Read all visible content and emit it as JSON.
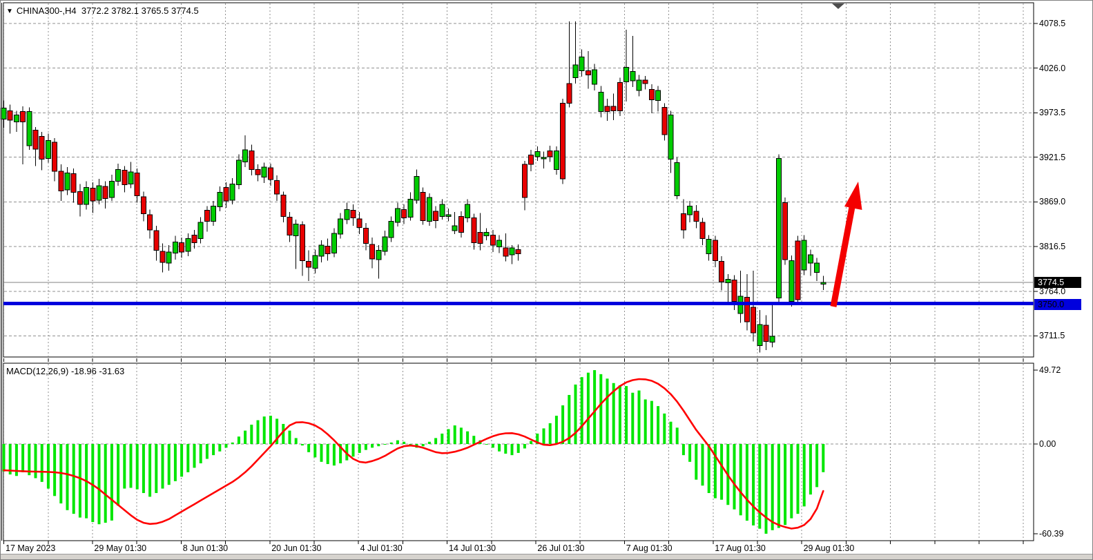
{
  "header": {
    "marker": "▼",
    "symbol_title": "CHINA300-,H4",
    "ohlc_text": "3772.2 3782.1 3765.5 3774.5"
  },
  "price_tags": {
    "current": "3774.5",
    "level": "3750.0"
  },
  "macd_panel": {
    "label": "MACD(12,26,9)",
    "values": "-18.96 -31.63"
  },
  "colors": {
    "bull": "#00cc00",
    "bear": "#e80000",
    "wick": "#000000",
    "histogram": "#00e600",
    "signal": "#ff0000",
    "level_line": "#0000dd",
    "current_line": "#808080",
    "grid": "#8f8f8f",
    "frame": "#000000",
    "arrow": "#f40000",
    "marker": "#4d4d4d"
  },
  "chart_data": {
    "type": "candlestick+macd",
    "symbol": "CHINA300-",
    "timeframe": "H4",
    "current_bar": {
      "open": 3772.2,
      "high": 3782.1,
      "low": 3765.5,
      "close": 3774.5
    },
    "price_axis": {
      "tick_labels": [
        "4078.5",
        "4026.0",
        "3973.5",
        "3921.5",
        "3869.0",
        "3816.5",
        "3764.0",
        "3711.5"
      ],
      "tick_values": [
        4078.5,
        4026.0,
        3973.5,
        3921.5,
        3869.0,
        3816.5,
        3764.0,
        3711.5
      ],
      "range_top": 4078.5,
      "range_bottom": 3711.5
    },
    "macd_axis": {
      "tick_labels": [
        "49.72",
        "0.00",
        "-60.39"
      ],
      "tick_values": [
        49.72,
        0.0,
        -60.39
      ]
    },
    "time_axis": {
      "labels": [
        "17 May 2023",
        "29 May 01:30",
        "8 Jun 01:30",
        "20 Jun 01:30",
        "4 Jul 01:30",
        "14 Jul 01:30",
        "26 Jul 01:30",
        "7 Aug 01:30",
        "17 Aug 01:30",
        "29 Aug 01:30"
      ]
    },
    "levels": {
      "horizontal_blue_line": 3750.0,
      "current_price_line": 3774.5
    },
    "annotations": {
      "bullish_arrow": {
        "from_price": 3748,
        "to_price": 3880
      },
      "top_marker": "down-triangle"
    },
    "candles_ohlc": [
      [
        3966,
        3988,
        3956,
        3979
      ],
      [
        3976,
        3983,
        3949,
        3965
      ],
      [
        3963,
        3976,
        3951,
        3971
      ],
      [
        3975,
        3981,
        3913,
        3963
      ],
      [
        3935,
        3980,
        3930,
        3975
      ],
      [
        3953,
        3957,
        3911,
        3931
      ],
      [
        3946,
        3951,
        3906,
        3919
      ],
      [
        3920,
        3949,
        3915,
        3941
      ],
      [
        3939,
        3944,
        3893,
        3905
      ],
      [
        3905,
        3913,
        3870,
        3882
      ],
      [
        3883,
        3910,
        3877,
        3903
      ],
      [
        3902,
        3908,
        3868,
        3880
      ],
      [
        3881,
        3890,
        3852,
        3866
      ],
      [
        3866,
        3893,
        3860,
        3886
      ],
      [
        3885,
        3892,
        3856,
        3870
      ],
      [
        3871,
        3896,
        3866,
        3888
      ],
      [
        3887,
        3893,
        3861,
        3873
      ],
      [
        3874,
        3901,
        3870,
        3893
      ],
      [
        3893,
        3914,
        3888,
        3907
      ],
      [
        3906,
        3911,
        3880,
        3889
      ],
      [
        3890,
        3916,
        3885,
        3904
      ],
      [
        3903,
        3908,
        3868,
        3876
      ],
      [
        3875,
        3881,
        3846,
        3855
      ],
      [
        3854,
        3860,
        3826,
        3836
      ],
      [
        3835,
        3841,
        3800,
        3812
      ],
      [
        3811,
        3820,
        3786,
        3798
      ],
      [
        3797,
        3818,
        3788,
        3810
      ],
      [
        3809,
        3829,
        3801,
        3822
      ],
      [
        3821,
        3827,
        3803,
        3810
      ],
      [
        3811,
        3832,
        3805,
        3826
      ],
      [
        3830,
        3836,
        3814,
        3821
      ],
      [
        3826,
        3851,
        3820,
        3845
      ],
      [
        3859,
        3864,
        3834,
        3846
      ],
      [
        3846,
        3870,
        3841,
        3864
      ],
      [
        3863,
        3887,
        3858,
        3880
      ],
      [
        3886,
        3892,
        3862,
        3870
      ],
      [
        3871,
        3897,
        3866,
        3890
      ],
      [
        3889,
        3925,
        3884,
        3918
      ],
      [
        3916,
        3947,
        3910,
        3930
      ],
      [
        3929,
        3936,
        3900,
        3907
      ],
      [
        3907,
        3913,
        3893,
        3901
      ],
      [
        3898,
        3915,
        3891,
        3910
      ],
      [
        3909,
        3914,
        3888,
        3895
      ],
      [
        3894,
        3900,
        3870,
        3878
      ],
      [
        3877,
        3881,
        3845,
        3852
      ],
      [
        3851,
        3857,
        3822,
        3830
      ],
      [
        3829,
        3848,
        3790,
        3843
      ],
      [
        3842,
        3846,
        3782,
        3800
      ],
      [
        3799,
        3812,
        3776,
        3792
      ],
      [
        3791,
        3813,
        3785,
        3806
      ],
      [
        3805,
        3824,
        3798,
        3818
      ],
      [
        3817,
        3826,
        3800,
        3808
      ],
      [
        3809,
        3838,
        3804,
        3832
      ],
      [
        3831,
        3856,
        3826,
        3849
      ],
      [
        3848,
        3868,
        3843,
        3860
      ],
      [
        3859,
        3866,
        3841,
        3850
      ],
      [
        3849,
        3857,
        3831,
        3839
      ],
      [
        3838,
        3844,
        3812,
        3820
      ],
      [
        3819,
        3827,
        3791,
        3802
      ],
      [
        3801,
        3818,
        3779,
        3812
      ],
      [
        3811,
        3835,
        3806,
        3828
      ],
      [
        3827,
        3852,
        3822,
        3846
      ],
      [
        3845,
        3868,
        3840,
        3861
      ],
      [
        3860,
        3866,
        3843,
        3850
      ],
      [
        3851,
        3880,
        3847,
        3872
      ],
      [
        3871,
        3907,
        3867,
        3899
      ],
      [
        3880,
        3886,
        3842,
        3847
      ],
      [
        3846,
        3879,
        3841,
        3874
      ],
      [
        3858,
        3864,
        3838,
        3847
      ],
      [
        3852,
        3872,
        3848,
        3866
      ],
      [
        3852,
        3861,
        3846,
        3854
      ],
      [
        3835,
        3857,
        3831,
        3841
      ],
      [
        3852,
        3858,
        3827,
        3833
      ],
      [
        3850,
        3872,
        3845,
        3866
      ],
      [
        3850,
        3855,
        3813,
        3821
      ],
      [
        3833,
        3856,
        3812,
        3820
      ],
      [
        3829,
        3838,
        3824,
        3833
      ],
      [
        3830,
        3836,
        3810,
        3818
      ],
      [
        3816,
        3830,
        3809,
        3824
      ],
      [
        3815,
        3832,
        3799,
        3805
      ],
      [
        3807,
        3818,
        3796,
        3815
      ],
      [
        3813,
        3819,
        3800,
        3808
      ],
      [
        3913,
        3917,
        3859,
        3874
      ],
      [
        3924,
        3930,
        3905,
        3913
      ],
      [
        3922,
        3934,
        3917,
        3928
      ],
      [
        3920,
        3928,
        3908,
        3921
      ],
      [
        3929,
        3935,
        3916,
        3922
      ],
      [
        3907,
        3934,
        3901,
        3929
      ],
      [
        3985,
        3990,
        3890,
        3896
      ],
      [
        4008,
        4081,
        3980,
        3985
      ],
      [
        4015,
        4081,
        4008,
        4030
      ],
      [
        4023,
        4048,
        4016,
        4039
      ],
      [
        4023,
        4046,
        4002,
        4018
      ],
      [
        4007,
        4031,
        4000,
        4024
      ],
      [
        3975,
        4005,
        3968,
        3998
      ],
      [
        3981,
        3990,
        3964,
        3975
      ],
      [
        3981,
        3996,
        3965,
        3976
      ],
      [
        4009,
        4015,
        3970,
        3976
      ],
      [
        4010,
        4071,
        3987,
        4027
      ],
      [
        4011,
        4064,
        4004,
        4022
      ],
      [
        4000,
        4018,
        3993,
        4012
      ],
      [
        4012,
        4017,
        4001,
        4008
      ],
      [
        4001,
        4007,
        3973,
        3989
      ],
      [
        3988,
        4005,
        3975,
        4000
      ],
      [
        3980,
        3985,
        3941,
        3948
      ],
      [
        3919,
        3976,
        3903,
        3971
      ],
      [
        3876,
        3921,
        3872,
        3915
      ],
      [
        3855,
        3872,
        3826,
        3836
      ],
      [
        3854,
        3870,
        3845,
        3864
      ],
      [
        3858,
        3865,
        3838,
        3846
      ],
      [
        3845,
        3850,
        3818,
        3826
      ],
      [
        3808,
        3830,
        3800,
        3825
      ],
      [
        3824,
        3829,
        3792,
        3800
      ],
      [
        3799,
        3805,
        3765,
        3775
      ],
      [
        3774,
        3784,
        3748,
        3778
      ],
      [
        3777,
        3783,
        3742,
        3752
      ],
      [
        3738,
        3788,
        3727,
        3758
      ],
      [
        3757,
        3784,
        3718,
        3728
      ],
      [
        3745,
        3788,
        3705,
        3715
      ],
      [
        3700,
        3742,
        3692,
        3725
      ],
      [
        3724,
        3736,
        3695,
        3705
      ],
      [
        3704,
        3750,
        3698,
        3711
      ],
      [
        3756,
        3925,
        3748,
        3920
      ],
      [
        3868,
        3874,
        3795,
        3801
      ],
      [
        3752,
        3806,
        3746,
        3800
      ],
      [
        3823,
        3829,
        3748,
        3754
      ],
      [
        3789,
        3830,
        3783,
        3824
      ],
      [
        3797,
        3813,
        3782,
        3807
      ],
      [
        3786,
        3803,
        3776,
        3797
      ],
      [
        3772.2,
        3782.1,
        3765.5,
        3774.5
      ]
    ],
    "macd_histogram": [
      -18.5,
      -20.5,
      -21.5,
      -19,
      -21,
      -23,
      -25.5,
      -30,
      -35,
      -40,
      -44.5,
      -47,
      -49.5,
      -50,
      -52.5,
      -54,
      -53,
      -51.5,
      -41.5,
      -30,
      -29.5,
      -30.5,
      -33,
      -35.5,
      -33,
      -30,
      -27.5,
      -25,
      -22,
      -19,
      -16,
      -13,
      -10,
      -7.5,
      -5,
      -2.5,
      1,
      5,
      9,
      13,
      16,
      18.5,
      19,
      17,
      13.5,
      9,
      4,
      -1,
      -5.5,
      -9,
      -12,
      -13.5,
      -14.5,
      -13,
      -11,
      -8.5,
      -6,
      -4,
      -2.5,
      -1.5,
      -0.5,
      1,
      2.5,
      1.5,
      -1,
      -2.5,
      -1.5,
      1.5,
      4,
      7,
      10,
      12.5,
      11,
      8.5,
      5.5,
      2.5,
      0,
      -2.5,
      -5,
      -6.5,
      -7.5,
      -6,
      -3,
      2,
      7,
      10.5,
      14,
      19,
      26,
      33,
      40,
      45,
      48,
      49.7,
      47,
      44,
      41,
      39.5,
      39,
      34.5,
      36,
      30,
      29,
      25.5,
      20.5,
      15,
      11,
      -7.5,
      -12,
      -24,
      -28,
      -33,
      -36.5,
      -37.5,
      -41,
      -44,
      -48,
      -51.6,
      -54.8,
      -57,
      -60.39,
      -58,
      -56.5,
      -54.5,
      -50,
      -47,
      -42,
      -34,
      -29,
      -18.96
    ],
    "macd_signal": [
      -17.7,
      -17.9,
      -18.1,
      -18.3,
      -18.5,
      -18.6,
      -18.7,
      -18.8,
      -19,
      -19.5,
      -20.3,
      -21.5,
      -23,
      -25,
      -27.5,
      -30.5,
      -34,
      -37.5,
      -41,
      -44.5,
      -48,
      -51,
      -53,
      -53.8,
      -53.5,
      -52.3,
      -50.5,
      -48,
      -45.5,
      -43,
      -40.5,
      -38,
      -35.5,
      -33,
      -30.5,
      -28,
      -25.5,
      -22.5,
      -19,
      -15,
      -10.5,
      -6,
      -1.5,
      3.5,
      8.5,
      12.5,
      14.5,
      14.7,
      14,
      12.5,
      10,
      6.5,
      2.5,
      -2,
      -6.5,
      -10,
      -12,
      -12.5,
      -11.5,
      -10,
      -8,
      -5.5,
      -3,
      -1.5,
      -1,
      -1.5,
      -2.5,
      -4,
      -5.5,
      -6.2,
      -6,
      -5.2,
      -4,
      -2.5,
      -0.5,
      1.5,
      3.5,
      5.2,
      6.5,
      7.2,
      7.3,
      6.5,
      5,
      3,
      1,
      -0.5,
      -0.8,
      0,
      1.5,
      4,
      7.5,
      12,
      17,
      22,
      27,
      31.5,
      35.5,
      39,
      41.5,
      43,
      43.7,
      43.5,
      42.5,
      40.5,
      37.5,
      33.5,
      28.5,
      22.5,
      16,
      9.5,
      4,
      -1.5,
      -8,
      -14.5,
      -21,
      -27,
      -32.5,
      -37.5,
      -42,
      -46,
      -49.5,
      -52.5,
      -54.5,
      -55.9,
      -56.9,
      -56.3,
      -54.5,
      -50.5,
      -43.5,
      -31.63
    ]
  }
}
